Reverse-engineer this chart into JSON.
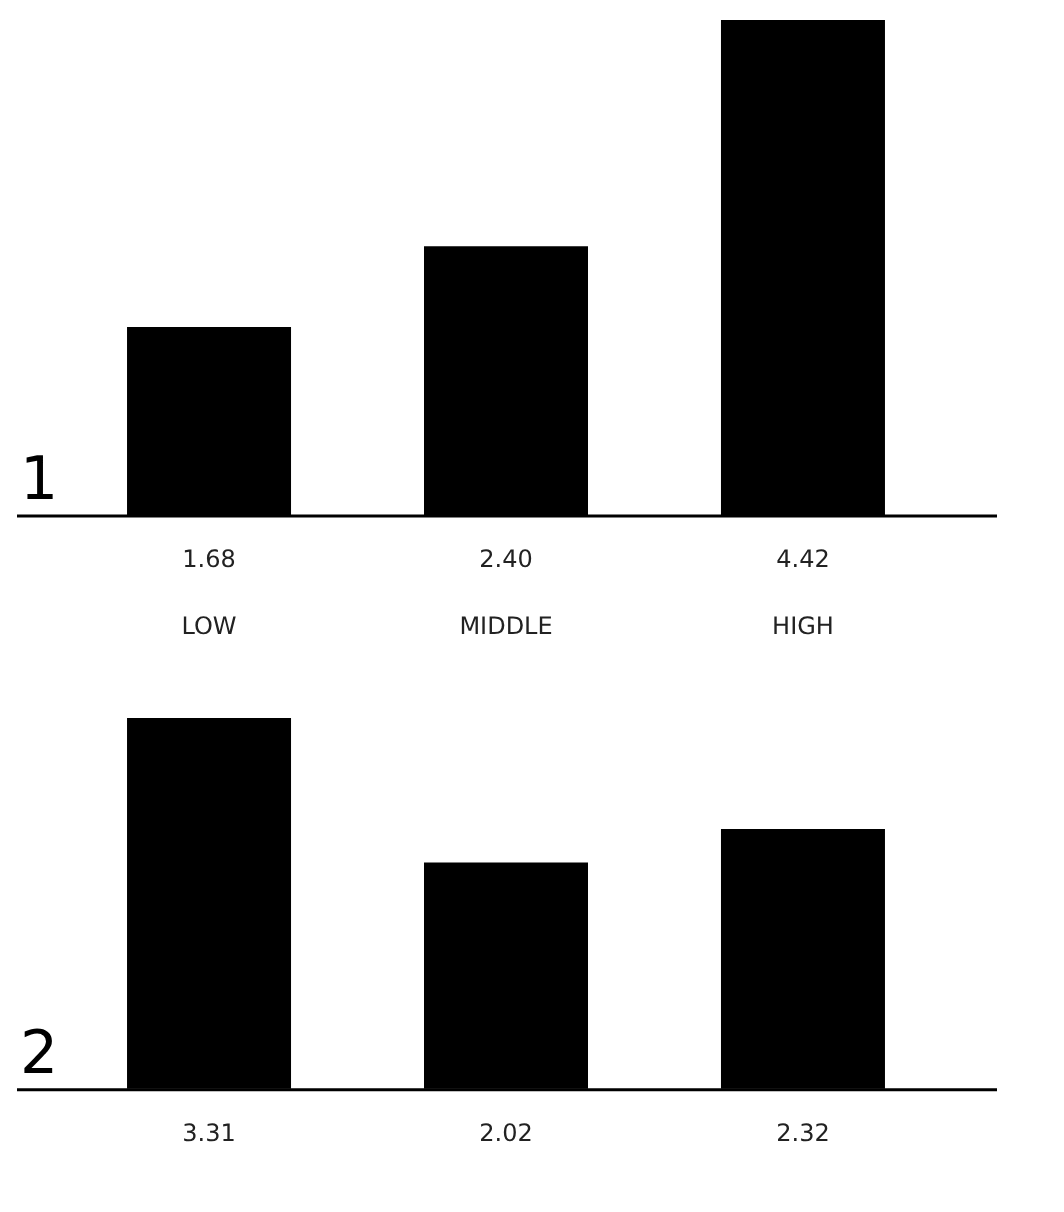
{
  "chart_data": [
    {
      "type": "bar",
      "categories": [
        "LOW",
        "MIDDLE",
        "HIGH"
      ],
      "values": [
        1.68,
        2.4,
        4.42
      ],
      "color": "#000000",
      "value_labels": [
        "1.68",
        "2.40",
        "4.42"
      ],
      "grid": false,
      "tick_labels": "x",
      "annotations": [
        "1"
      ]
    },
    {
      "type": "bar",
      "categories": [
        null,
        null,
        null
      ],
      "values": [
        3.31,
        2.02,
        2.32
      ],
      "color": "#000000",
      "value_labels": [
        "3.31",
        "2.02",
        "2.32"
      ],
      "grid": false,
      "annotations": [
        "2"
      ]
    }
  ]
}
